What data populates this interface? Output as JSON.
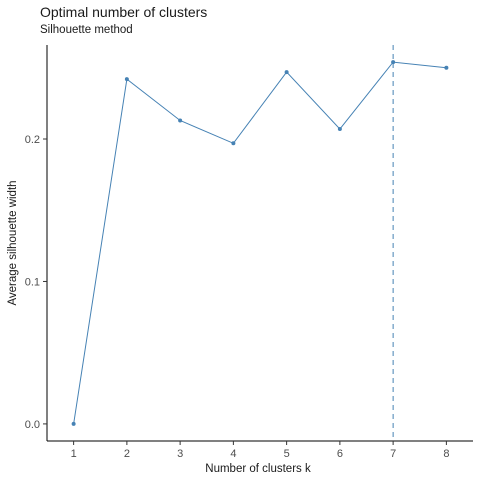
{
  "chart_data": {
    "type": "line",
    "title": "Optimal number of clusters",
    "subtitle": "Silhouette method",
    "xlabel": "Number of clusters k",
    "ylabel": "Average silhouette width",
    "x": [
      1,
      2,
      3,
      4,
      5,
      6,
      7,
      8
    ],
    "values": [
      0.0,
      0.242,
      0.213,
      0.197,
      0.247,
      0.207,
      0.254,
      0.25
    ],
    "xlim": [
      0.5,
      8.5
    ],
    "ylim": [
      -0.012,
      0.266
    ],
    "yticks": [
      0.0,
      0.1,
      0.2
    ],
    "ytick_labels": [
      "0.0",
      "0.1",
      "0.2"
    ],
    "xtick_labels": [
      "1",
      "2",
      "3",
      "4",
      "5",
      "6",
      "7",
      "8"
    ],
    "optimal_k": 7,
    "grid": false,
    "line_color": "#4682B4",
    "vline_color": "#4682B4"
  }
}
